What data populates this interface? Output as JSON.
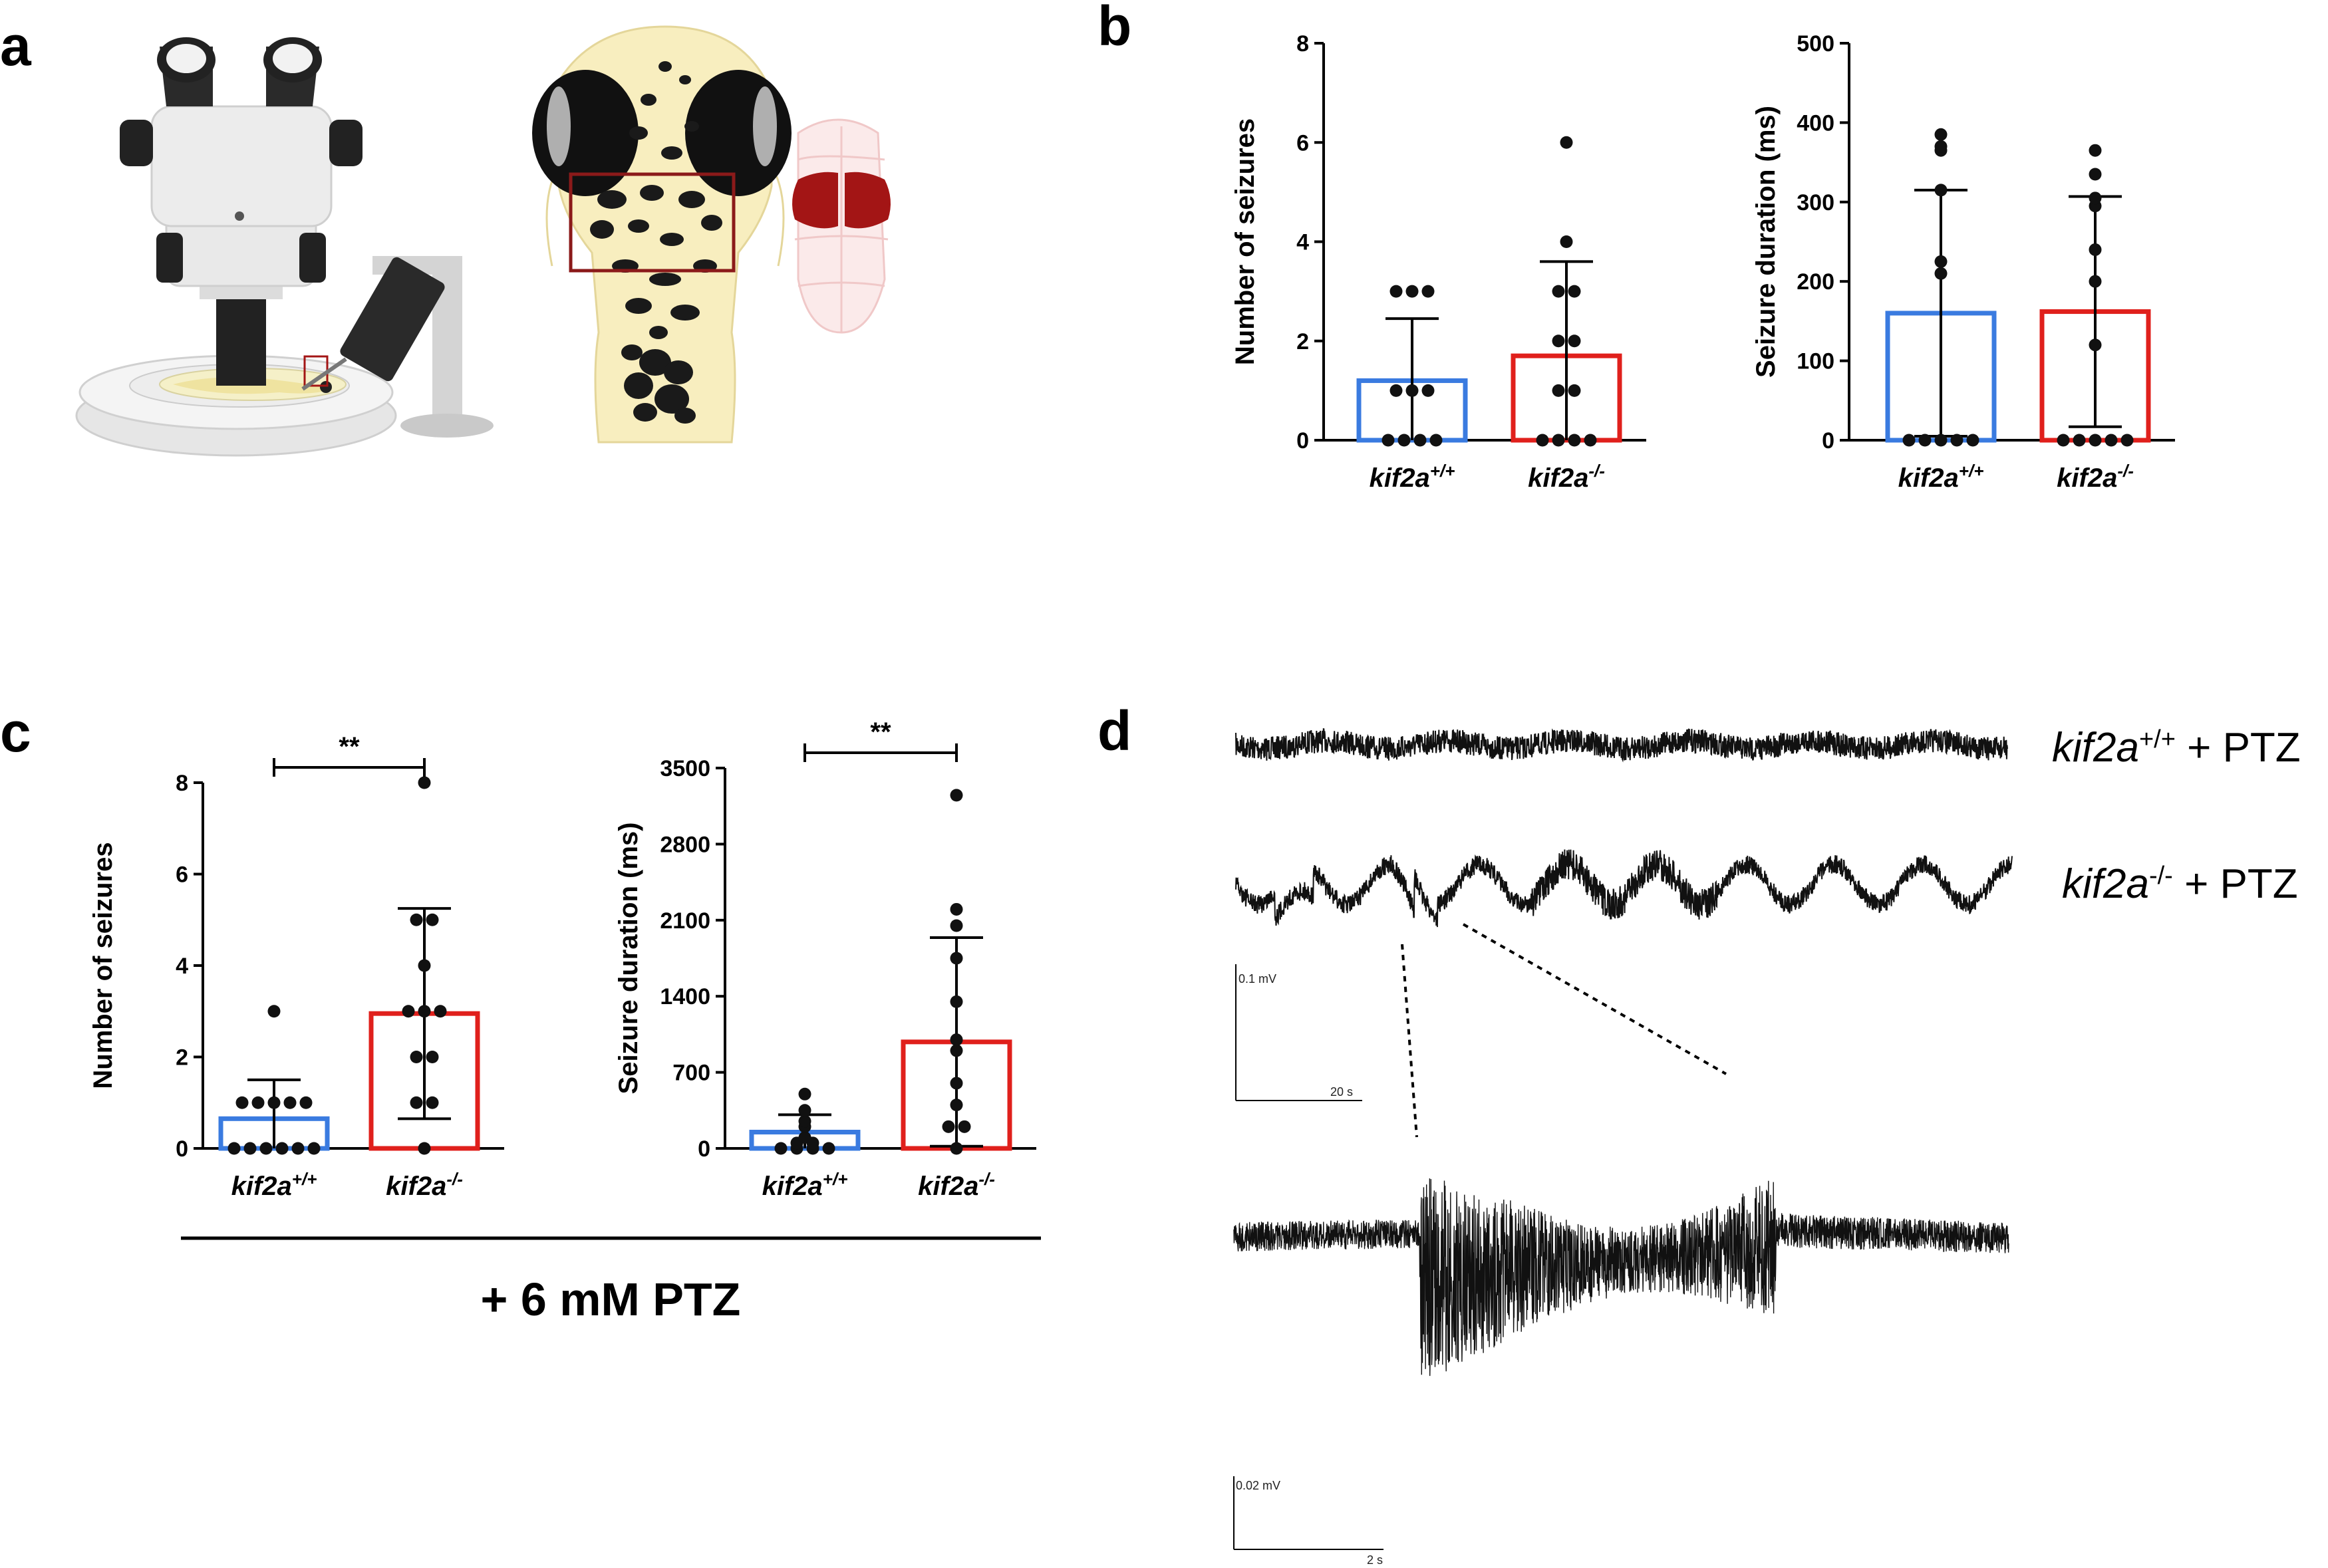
{
  "panels": {
    "a": "a",
    "b": "b",
    "c": "c",
    "d": "d"
  },
  "illustration": {
    "microscope": "stereo-microscope-icon",
    "larva": "zebrafish-larva-head-icon",
    "brain": "brain-optic-tectum-icon",
    "colors": {
      "larva_body": "#f8eebf",
      "pigment": "#1a1a1a",
      "roi_box": "#8b1a1a",
      "brain_lobes": "#a31515",
      "brain_outline": "#f5d5d5"
    }
  },
  "colors": {
    "wt": "#3a7be0",
    "mut": "#e0201c",
    "point": "#111111"
  },
  "group_label": "+ 6 mM PTZ",
  "chart_data": [
    {
      "id": "b-left",
      "type": "bar",
      "categories": [
        "kif2a",
        "kif2a"
      ],
      "category_sup": [
        "+/+",
        "-/-"
      ],
      "ylabel": "Number of seizures",
      "ylim": [
        0,
        8
      ],
      "yticks": [
        "0",
        "2",
        "4",
        "6",
        "8"
      ],
      "means": [
        1.2,
        1.7
      ],
      "sd": [
        1.25,
        1.9
      ],
      "points": [
        [
          3,
          3,
          3,
          1,
          1,
          1,
          0,
          0,
          0,
          0
        ],
        [
          6,
          4,
          3,
          3,
          2,
          2,
          1,
          1,
          0,
          0,
          0,
          0
        ]
      ],
      "significance": ""
    },
    {
      "id": "b-right",
      "type": "bar",
      "categories": [
        "kif2a",
        "kif2a"
      ],
      "category_sup": [
        "+/+",
        "-/-"
      ],
      "ylabel": "Seizure duration (ms)",
      "ylim": [
        0,
        500
      ],
      "yticks": [
        "0",
        "100",
        "200",
        "300",
        "400",
        "500"
      ],
      "means": [
        160,
        162
      ],
      "sd": [
        155,
        145
      ],
      "points": [
        [
          385,
          365,
          370,
          315,
          225,
          210,
          0,
          0,
          0,
          0,
          0
        ],
        [
          365,
          335,
          305,
          295,
          240,
          200,
          120,
          0,
          0,
          0,
          0,
          0
        ]
      ],
      "significance": ""
    },
    {
      "id": "c-left",
      "type": "bar",
      "categories": [
        "kif2a",
        "kif2a"
      ],
      "category_sup": [
        "+/+",
        "-/-"
      ],
      "ylabel": "Number of seizures",
      "ylim": [
        0,
        8
      ],
      "yticks": [
        "0",
        "2",
        "4",
        "6",
        "8"
      ],
      "means": [
        0.65,
        2.95
      ],
      "sd": [
        0.85,
        2.3
      ],
      "points": [
        [
          3,
          1,
          1,
          1,
          1,
          1,
          0,
          0,
          0,
          0,
          0,
          0
        ],
        [
          8,
          5,
          5,
          4,
          3,
          3,
          3,
          2,
          2,
          1,
          1,
          0
        ]
      ],
      "significance": "**"
    },
    {
      "id": "c-right",
      "type": "bar",
      "categories": [
        "kif2a",
        "kif2a"
      ],
      "category_sup": [
        "+/+",
        "-/-"
      ],
      "ylabel": "Seizure duration (ms)",
      "ylim": [
        0,
        3500
      ],
      "yticks": [
        "0",
        "700",
        "1400",
        "2100",
        "2800",
        "3500"
      ],
      "means": [
        150,
        980
      ],
      "sd": [
        160,
        960
      ],
      "points": [
        [
          500,
          350,
          250,
          200,
          100,
          50,
          50,
          0,
          0,
          0,
          0
        ],
        [
          3250,
          2200,
          2050,
          1750,
          1350,
          1000,
          900,
          600,
          400,
          200,
          200,
          0
        ]
      ],
      "significance": "**"
    }
  ],
  "traces": {
    "wt_label": {
      "gene": "kif2a",
      "sup": "+/+",
      "rest": " + PTZ"
    },
    "mut_label": {
      "gene": "kif2a",
      "sup": "-/-",
      "rest": " + PTZ"
    },
    "scale1": {
      "y": "0.1 mV",
      "x": "20 s"
    },
    "scale2": {
      "y": "0.02 mV",
      "x": "2 s"
    }
  }
}
